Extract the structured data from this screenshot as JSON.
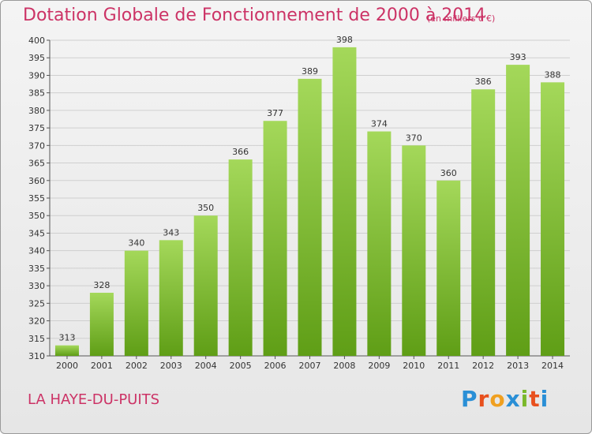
{
  "title": "Dotation Globale de Fonctionnement de 2000 à 2014",
  "subtitle": "(en milliers d'€)",
  "commune": "LA HAYE-DU-PUITS",
  "logo": {
    "letters": [
      "P",
      "r",
      "o",
      "x",
      "i",
      "t",
      "i"
    ],
    "colors": [
      "#2a8fd6",
      "#e8501e",
      "#f0a020",
      "#2a8fd6",
      "#7ab82a",
      "#e8501e",
      "#2a8fd6"
    ]
  },
  "colors": {
    "title": "#cc3366",
    "bar_top": "#a4d85a",
    "bar_bottom": "#5f9e16"
  },
  "chart_data": {
    "type": "bar",
    "categories": [
      "2000",
      "2001",
      "2002",
      "2003",
      "2004",
      "2005",
      "2006",
      "2007",
      "2008",
      "2009",
      "2010",
      "2011",
      "2012",
      "2013",
      "2014"
    ],
    "values": [
      313,
      328,
      340,
      343,
      350,
      366,
      377,
      389,
      398,
      374,
      370,
      360,
      386,
      393,
      388
    ],
    "ylim": [
      310,
      400
    ],
    "yticks": [
      310,
      315,
      320,
      325,
      330,
      335,
      340,
      345,
      350,
      355,
      360,
      365,
      370,
      375,
      380,
      385,
      390,
      395,
      400
    ],
    "grid": true,
    "data_labels": true
  }
}
